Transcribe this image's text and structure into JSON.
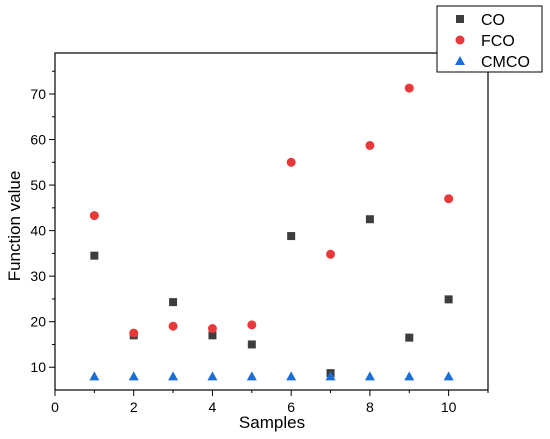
{
  "chart_data": {
    "type": "scatter",
    "title": "",
    "xlabel": "Samples",
    "ylabel": "Function value",
    "xlim": [
      0,
      11
    ],
    "ylim": [
      5,
      79
    ],
    "x_ticks": [
      0,
      2,
      4,
      6,
      8,
      10
    ],
    "y_ticks": [
      10,
      20,
      30,
      40,
      50,
      60,
      70
    ],
    "grid": false,
    "legend_position": "top-right",
    "series": [
      {
        "name": "CO",
        "marker": "square",
        "color": "#3d3d3d",
        "x": [
          1,
          2,
          3,
          4,
          5,
          6,
          7,
          8,
          9,
          10
        ],
        "y": [
          34.5,
          17.0,
          24.3,
          17.0,
          15.0,
          38.8,
          8.7,
          42.5,
          16.5,
          24.9
        ]
      },
      {
        "name": "FCO",
        "marker": "circle",
        "color": "#e8393a",
        "x": [
          1,
          2,
          3,
          4,
          5,
          6,
          7,
          8,
          9,
          10
        ],
        "y": [
          43.3,
          17.5,
          19.0,
          18.5,
          19.3,
          55.0,
          34.8,
          58.7,
          71.3,
          47.0
        ]
      },
      {
        "name": "CMCO",
        "marker": "triangle",
        "color": "#1a6fd6",
        "x": [
          1,
          2,
          3,
          4,
          5,
          6,
          7,
          8,
          9,
          10
        ],
        "y": [
          8.0,
          8.0,
          8.0,
          8.0,
          8.0,
          8.0,
          8.0,
          8.0,
          8.0,
          8.0
        ]
      }
    ]
  }
}
